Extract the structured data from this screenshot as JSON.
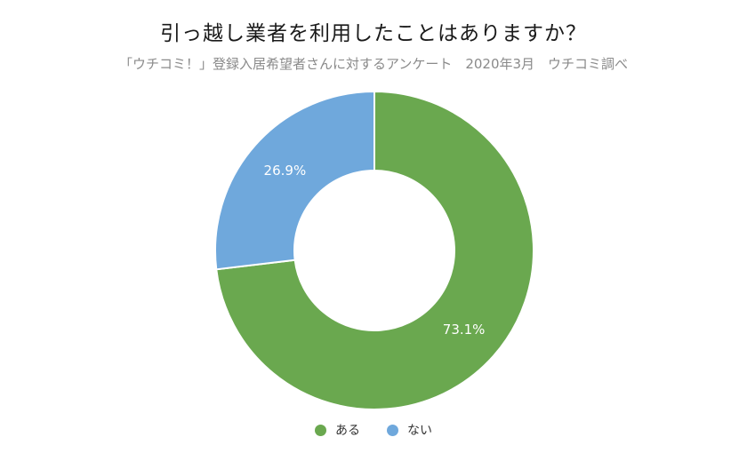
{
  "chart_data": {
    "type": "donut",
    "title": "引っ越し業者を利用したことはありますか？",
    "subtitle": "「ウチコミ！」登録入居希望者さんに対するアンケート　2020年3月　ウチコミ調べ",
    "slices": [
      {
        "label": "ある",
        "value": 73.1,
        "display": "73.1%",
        "color": "#6aa84f"
      },
      {
        "label": "ない",
        "value": 26.9,
        "display": "26.9%",
        "color": "#6fa8dc"
      }
    ],
    "start_angle_deg": 0,
    "direction": "clockwise",
    "legend_position": "bottom"
  }
}
